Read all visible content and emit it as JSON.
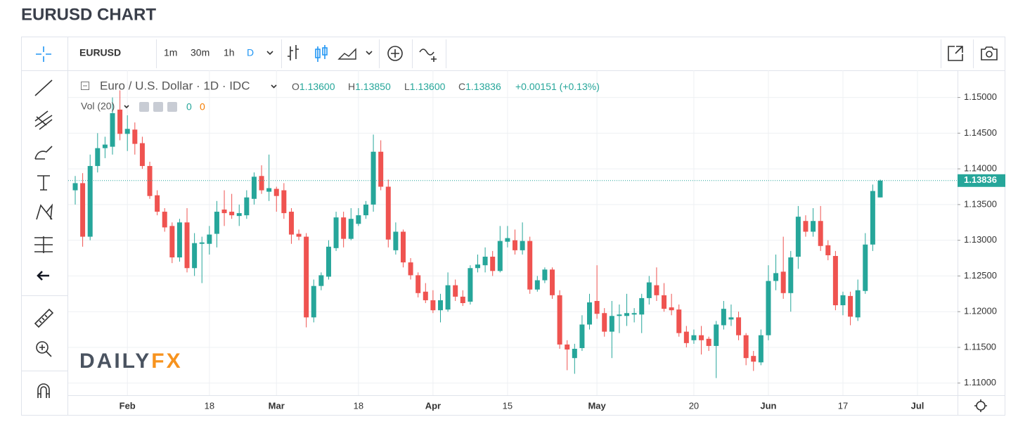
{
  "page_title": "EURUSD CHART",
  "toolbar": {
    "symbol": "EURUSD",
    "intervals": [
      "1m",
      "30m",
      "1h",
      "D"
    ]
  },
  "legend": {
    "instrument": "Euro / U.S. Dollar · 1D · IDC",
    "ohlc": [
      {
        "key": "O",
        "value": "1.13600"
      },
      {
        "key": "H",
        "value": "1.13850"
      },
      {
        "key": "L",
        "value": "1.13600"
      },
      {
        "key": "C",
        "value": "1.13836"
      }
    ],
    "change": "+0.00151 (+0.13%)"
  },
  "volume": {
    "label": "Vol (20)",
    "values": [
      0,
      0
    ]
  },
  "watermark": [
    "DAILY",
    "FX"
  ],
  "chart_data": {
    "type": "candlestick",
    "up_color": "#26a69a",
    "down_color": "#ef5350",
    "grid": true,
    "last_label": "1.13836",
    "categories": [
      null,
      null,
      null,
      null,
      null,
      null,
      null,
      "Feb",
      null,
      null,
      null,
      null,
      null,
      null,
      null,
      null,
      null,
      null,
      "18",
      null,
      null,
      null,
      null,
      null,
      null,
      null,
      null,
      "Mar",
      null,
      null,
      null,
      null,
      null,
      null,
      null,
      null,
      null,
      null,
      "18",
      null,
      null,
      null,
      null,
      null,
      null,
      null,
      null,
      null,
      "Apr",
      null,
      null,
      null,
      null,
      null,
      null,
      null,
      null,
      null,
      "15",
      null,
      null,
      null,
      null,
      null,
      null,
      null,
      null,
      null,
      null,
      null,
      "May",
      null,
      null,
      null,
      null,
      null,
      null,
      null,
      null,
      null,
      null,
      null,
      null,
      "20",
      null,
      null,
      null,
      null,
      null,
      null,
      null,
      null,
      null,
      "Jun",
      null,
      null,
      null,
      null,
      null,
      null,
      null,
      null,
      null,
      "17",
      null,
      null,
      null,
      null,
      null,
      null,
      null,
      null,
      null,
      "Jul"
    ],
    "open": [
      1.137,
      1.138,
      1.1305,
      1.1404,
      1.1429,
      1.1431,
      1.1483,
      1.1449,
      1.1455,
      1.1436,
      1.1404,
      1.1363,
      1.134,
      1.132,
      1.1276,
      1.1325,
      1.1261,
      1.1295,
      1.1295,
      1.1309,
      1.1343,
      1.134,
      1.1334,
      1.1335,
      1.1358,
      1.139,
      1.1368,
      1.1372,
      1.137,
      1.134,
      1.1309,
      1.1305,
      1.1192,
      1.1236,
      1.1249,
      1.1289,
      1.1332,
      1.1302,
      1.1323,
      1.1335,
      1.135,
      1.1424,
      1.1375,
      1.1286,
      1.1312,
      1.1269,
      1.1251,
      1.1228,
      1.1216,
      1.1202,
      1.1203,
      1.1237,
      1.1221,
      1.1214,
      1.1261,
      1.1265,
      1.1277,
      1.1257,
      1.1298,
      1.13,
      1.1286,
      1.1299,
      1.1231,
      1.1244,
      1.1259,
      1.1223,
      1.1154,
      1.1135,
      1.1149,
      1.1182,
      1.1215,
      1.1198,
      1.1172,
      1.1194,
      1.1194,
      1.1196,
      1.1196,
      1.1219,
      1.1237,
      1.1223,
      1.1206,
      1.1203,
      1.1172,
      1.116,
      1.1167,
      1.1162,
      1.1152,
      1.1181,
      1.1189,
      1.1192,
      1.1167,
      1.1138,
      1.1129,
      1.1167,
      1.1243,
      1.1256,
      1.1226,
      1.1277,
      1.1327,
      1.1312,
      1.1327,
      1.1293,
      1.1278,
      1.1209,
      1.1222,
      1.1192,
      1.1229,
      1.1294,
      1.136,
      null,
      null,
      null,
      null,
      null
    ],
    "high": [
      1.139,
      1.1394,
      1.142,
      1.145,
      1.1445,
      1.15,
      1.151,
      1.1475,
      1.1465,
      1.1445,
      1.141,
      1.137,
      1.1345,
      1.1325,
      1.133,
      1.1345,
      1.131,
      1.1305,
      1.132,
      1.1355,
      1.137,
      1.1365,
      1.135,
      1.137,
      1.1395,
      1.1405,
      1.142,
      1.1375,
      1.138,
      1.1345,
      1.1315,
      1.131,
      1.1245,
      1.1255,
      1.13,
      1.134,
      1.134,
      1.1345,
      1.1345,
      1.1355,
      1.1448,
      1.144,
      1.1385,
      1.1325,
      1.1315,
      1.1275,
      1.1255,
      1.124,
      1.123,
      1.1225,
      1.1255,
      1.1245,
      1.123,
      1.1265,
      1.128,
      1.129,
      1.1285,
      1.132,
      1.132,
      1.1315,
      1.1325,
      1.1305,
      1.125,
      1.1262,
      1.1262,
      1.123,
      1.116,
      1.1155,
      1.1195,
      1.1225,
      1.1265,
      1.1205,
      1.1215,
      1.121,
      1.1225,
      1.1205,
      1.1225,
      1.125,
      1.1262,
      1.124,
      1.1225,
      1.121,
      1.118,
      1.1175,
      1.118,
      1.1165,
      1.1187,
      1.1215,
      1.121,
      1.12,
      1.117,
      1.1145,
      1.1175,
      1.1265,
      1.128,
      1.1305,
      1.1285,
      1.1348,
      1.1335,
      1.1345,
      1.1348,
      1.13,
      1.1285,
      1.1228,
      1.1228,
      1.1245,
      1.131,
      1.1378,
      1.1385,
      null,
      null,
      null,
      null,
      null
    ],
    "low": [
      1.135,
      1.1291,
      1.13,
      1.1395,
      1.1415,
      1.142,
      1.144,
      1.1425,
      1.142,
      1.14,
      1.1358,
      1.1335,
      1.1312,
      1.1268,
      1.127,
      1.1255,
      1.125,
      1.124,
      1.128,
      1.129,
      1.132,
      1.133,
      1.132,
      1.133,
      1.135,
      1.1365,
      1.1355,
      1.134,
      1.133,
      1.1295,
      1.13,
      1.1178,
      1.1185,
      1.123,
      1.1245,
      1.1285,
      1.129,
      1.13,
      1.132,
      1.133,
      1.134,
      1.137,
      1.129,
      1.128,
      1.1262,
      1.1245,
      1.122,
      1.1212,
      1.1198,
      1.1185,
      1.12,
      1.1215,
      1.1208,
      1.121,
      1.1255,
      1.1255,
      1.125,
      1.1255,
      1.129,
      1.128,
      1.128,
      1.1225,
      1.1228,
      1.124,
      1.1218,
      1.1148,
      1.1118,
      1.1113,
      1.1145,
      1.1175,
      1.119,
      1.1165,
      1.1135,
      1.117,
      1.118,
      1.1185,
      1.117,
      1.121,
      1.1215,
      1.12,
      1.1195,
      1.1165,
      1.115,
      1.1155,
      1.114,
      1.1145,
      1.1107,
      1.1175,
      1.118,
      1.116,
      1.1125,
      1.1117,
      1.1125,
      1.116,
      1.123,
      1.1218,
      1.12,
      1.126,
      1.1305,
      1.1305,
      1.1285,
      1.1272,
      1.1202,
      1.1195,
      1.1181,
      1.1187,
      1.1225,
      1.1285,
      1.136,
      null,
      null,
      null,
      null,
      null
    ],
    "close": [
      1.138,
      1.1305,
      1.1404,
      1.1429,
      1.1434,
      1.1478,
      1.1449,
      1.1456,
      1.1435,
      1.1404,
      1.1362,
      1.134,
      1.1318,
      1.1276,
      1.1325,
      1.1261,
      1.1296,
      1.1297,
      1.1308,
      1.134,
      1.1338,
      1.1335,
      1.1338,
      1.136,
      1.1389,
      1.137,
      1.1373,
      1.1362,
      1.1338,
      1.1308,
      1.1305,
      1.1192,
      1.1236,
      1.1251,
      1.1291,
      1.1332,
      1.1302,
      1.133,
      1.1335,
      1.135,
      1.1424,
      1.1375,
      1.1301,
      1.1312,
      1.1269,
      1.1251,
      1.1226,
      1.1216,
      1.1202,
      1.1216,
      1.1237,
      1.1221,
      1.1212,
      1.1261,
      1.1266,
      1.1277,
      1.1257,
      1.1299,
      1.1303,
      1.1286,
      1.1299,
      1.1231,
      1.1244,
      1.1259,
      1.1223,
      1.1154,
      1.1147,
      1.1148,
      1.1182,
      1.1213,
      1.1197,
      1.1172,
      1.1194,
      1.1196,
      1.1198,
      1.1198,
      1.1219,
      1.1241,
      1.1223,
      1.1204,
      1.1202,
      1.117,
      1.1156,
      1.1167,
      1.116,
      1.1152,
      1.1182,
      1.1204,
      1.1192,
      1.1167,
      1.1135,
      1.113,
      1.1167,
      1.1243,
      1.1254,
      1.1226,
      1.1276,
      1.1333,
      1.1312,
      1.1327,
      1.1292,
      1.1279,
      1.1209,
      1.1223,
      1.1193,
      1.123,
      1.1294,
      1.1369,
      1.13836,
      null,
      null,
      null,
      null,
      null
    ],
    "ylim": [
      1.1083,
      1.1538
    ],
    "yticks": [
      {
        "value": 1.11,
        "label": "1.11000"
      },
      {
        "value": 1.115,
        "label": "1.11500"
      },
      {
        "value": 1.12,
        "label": "1.12000"
      },
      {
        "value": 1.125,
        "label": "1.12500"
      },
      {
        "value": 1.13,
        "label": "1.13000"
      },
      {
        "value": 1.135,
        "label": "1.13500"
      },
      {
        "value": 1.14,
        "label": "1.14000"
      },
      {
        "value": 1.145,
        "label": "1.14500"
      },
      {
        "value": 1.15,
        "label": "1.15000"
      }
    ]
  }
}
